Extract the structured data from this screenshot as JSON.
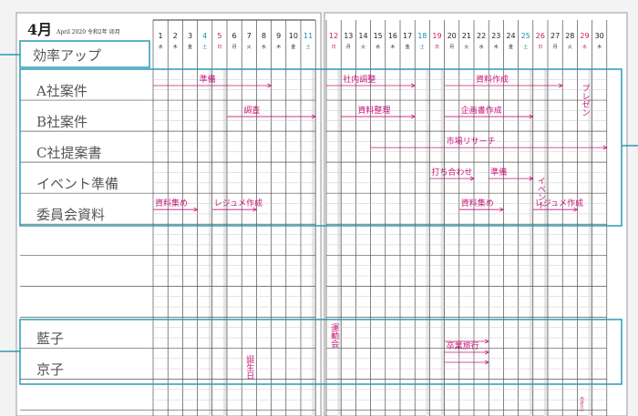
{
  "header": {
    "month": "4月",
    "subtitle": "April 2020 令和2年 卯月"
  },
  "days": [
    {
      "day": 1,
      "weekday": "水"
    },
    {
      "day": 2,
      "weekday": "木"
    },
    {
      "day": 3,
      "weekday": "金"
    },
    {
      "day": 4,
      "weekday": "土"
    },
    {
      "day": 5,
      "weekday": "日"
    },
    {
      "day": 6,
      "weekday": "月"
    },
    {
      "day": 7,
      "weekday": "火"
    },
    {
      "day": 8,
      "weekday": "水"
    },
    {
      "day": 9,
      "weekday": "木"
    },
    {
      "day": 10,
      "weekday": "金"
    },
    {
      "day": 11,
      "weekday": "土"
    },
    {
      "day": 12,
      "weekday": "日"
    },
    {
      "day": 13,
      "weekday": "月"
    },
    {
      "day": 14,
      "weekday": "火"
    },
    {
      "day": 15,
      "weekday": "水"
    },
    {
      "day": 16,
      "weekday": "木"
    },
    {
      "day": 17,
      "weekday": "金"
    },
    {
      "day": 18,
      "weekday": "土"
    },
    {
      "day": 19,
      "weekday": "日"
    },
    {
      "day": 20,
      "weekday": "月"
    },
    {
      "day": 21,
      "weekday": "火"
    },
    {
      "day": 22,
      "weekday": "水"
    },
    {
      "day": 23,
      "weekday": "木"
    },
    {
      "day": 24,
      "weekday": "金"
    },
    {
      "day": 25,
      "weekday": "土"
    },
    {
      "day": 26,
      "weekday": "日"
    },
    {
      "day": 27,
      "weekday": "月"
    },
    {
      "day": 28,
      "weekday": "火"
    },
    {
      "day": 29,
      "weekday": "水"
    },
    {
      "day": 30,
      "weekday": "木"
    }
  ],
  "holiday": "昭和の日",
  "goal": "効率アップ",
  "tasks": [
    "A社案件",
    "B社案件",
    "C社提案書",
    "イベント準備",
    "委員会資料"
  ],
  "people": [
    "藍子",
    "京子"
  ],
  "notes": [
    "準備",
    "社内調整",
    "資料作成",
    "プレゼン",
    "調査",
    "資料整理",
    "企画書作成",
    "市場リサーチ",
    "打ち合わせ",
    "準備",
    "イベント",
    "資料集め",
    "レジュメ作成",
    "資料集め",
    "レジュメ作成",
    "運動会",
    "卒業旅行",
    "誕生日"
  ]
}
